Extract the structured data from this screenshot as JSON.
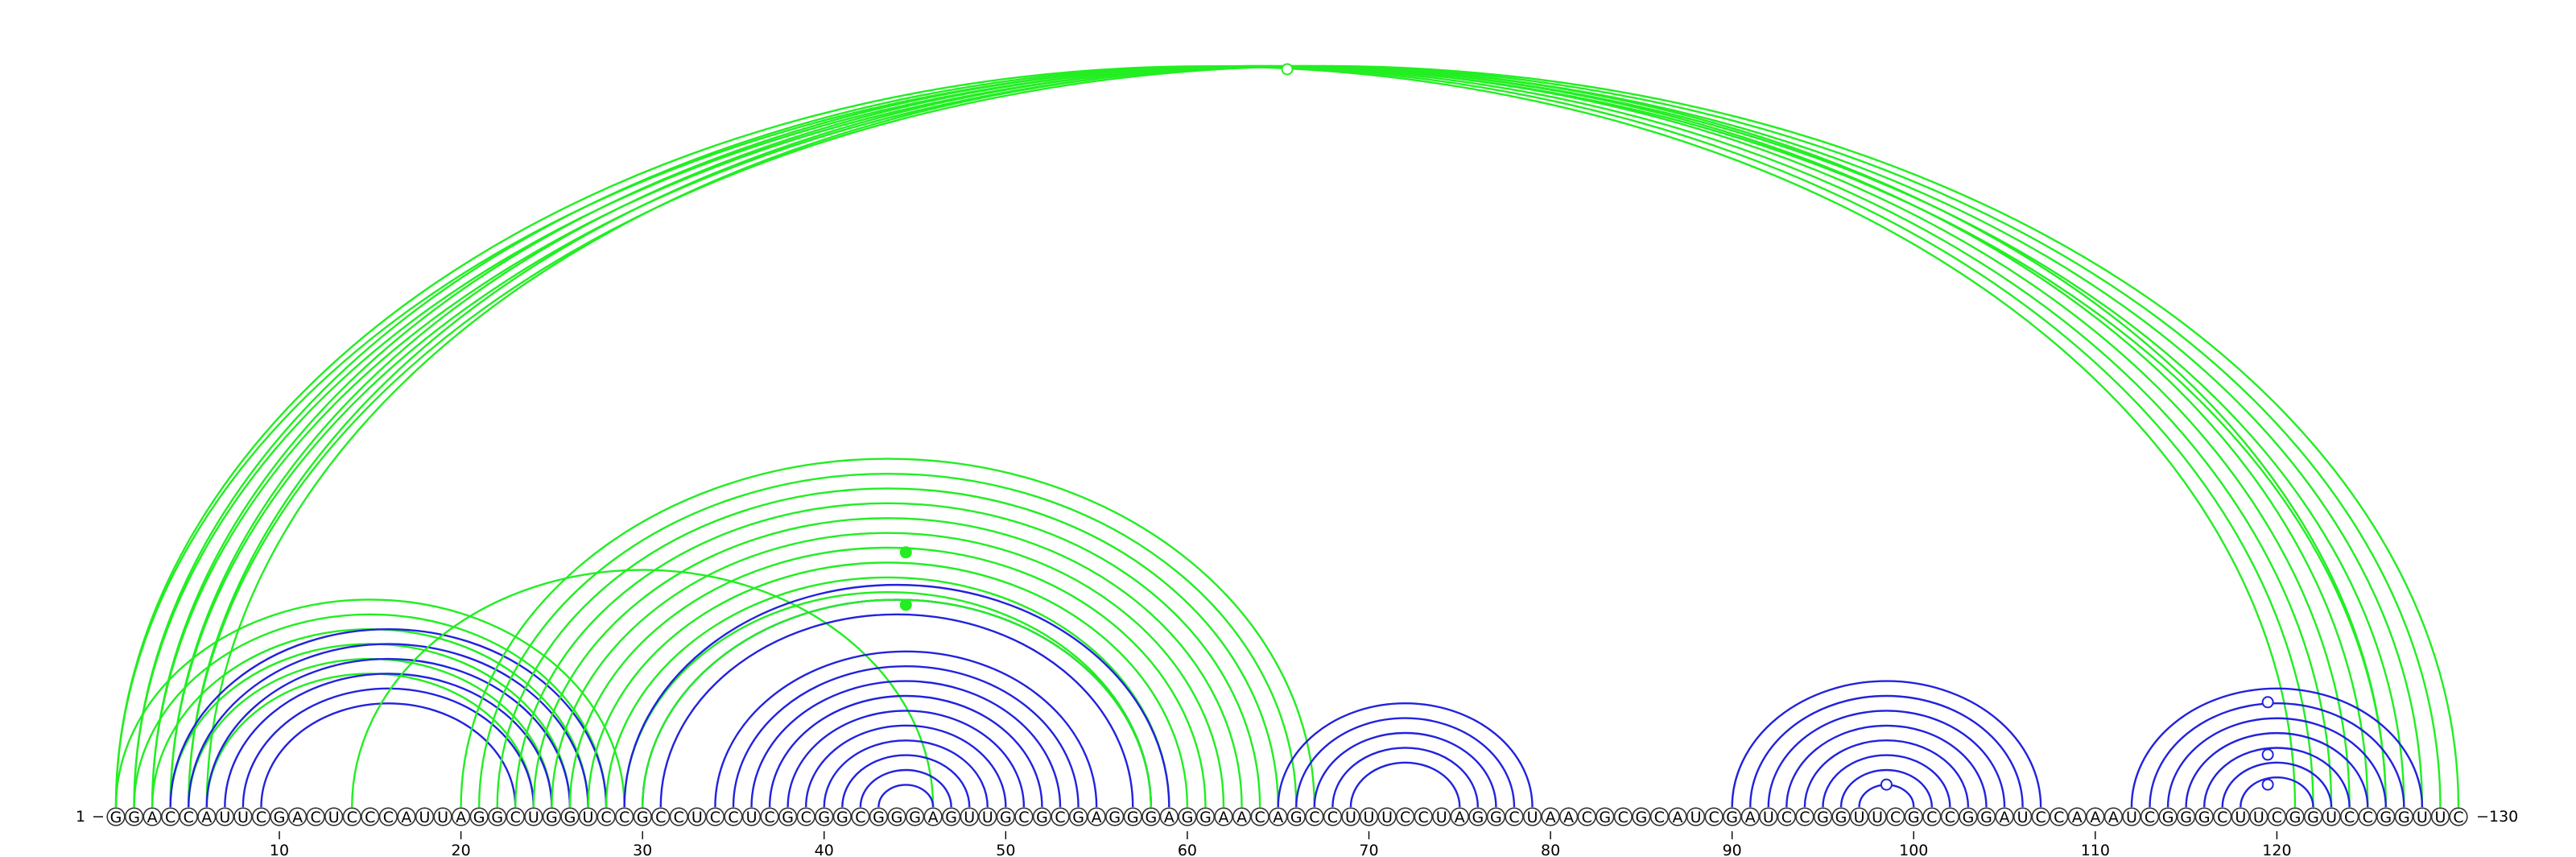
{
  "sequence": "GGACCAUUCGACUCCCAUUAGGCUGGUCCGCCUCCUCGCGGCGGGAGUUGCGCGAGGGAGGAACAGCCUUUCCUAGGCUAACGCGCAUCGAUCCGGUUCGCCGGAUCCAAAUCGGGCUUCGGUCCGGUUC",
  "start_label": "1",
  "end_label": "130",
  "ticks": [
    10,
    20,
    30,
    40,
    50,
    60,
    70,
    80,
    90,
    100,
    110,
    120
  ],
  "colors": {
    "green": "#22ee22",
    "blue": "#2222dd",
    "text": "#000000"
  },
  "arcs": [
    {
      "color": "green",
      "pairs": [
        [
          1,
          121
        ],
        [
          2,
          122
        ],
        [
          3,
          123
        ],
        [
          4,
          124
        ],
        [
          5,
          125
        ],
        [
          6,
          126
        ],
        [
          1,
          126
        ],
        [
          2,
          127
        ],
        [
          3,
          128
        ],
        [
          4,
          129
        ],
        [
          5,
          130
        ]
      ]
    },
    {
      "color": "green",
      "pairs": [
        [
          1,
          29
        ],
        [
          2,
          28
        ],
        [
          3,
          27
        ],
        [
          4,
          26
        ],
        [
          5,
          25
        ],
        [
          6,
          24
        ]
      ]
    },
    {
      "color": "blue",
      "pairs": [
        [
          4,
          28
        ],
        [
          5,
          27
        ],
        [
          6,
          26
        ],
        [
          7,
          25
        ],
        [
          8,
          24
        ],
        [
          9,
          23
        ]
      ]
    },
    {
      "color": "green",
      "pairs": [
        [
          14,
          46
        ]
      ]
    },
    {
      "color": "green",
      "pairs": [
        [
          20,
          67
        ],
        [
          21,
          66
        ],
        [
          22,
          65
        ],
        [
          23,
          64
        ],
        [
          24,
          63
        ],
        [
          25,
          62
        ],
        [
          26,
          61
        ],
        [
          27,
          60
        ],
        [
          28,
          59
        ],
        [
          29,
          58
        ]
      ]
    },
    {
      "color": "blue",
      "pairs": [
        [
          29,
          59
        ],
        [
          30,
          58
        ],
        [
          31,
          57
        ]
      ]
    },
    {
      "color": "green",
      "pairs": [
        [
          30,
          58
        ]
      ]
    },
    {
      "color": "blue",
      "pairs": [
        [
          34,
          55
        ],
        [
          35,
          54
        ],
        [
          36,
          53
        ],
        [
          37,
          52
        ],
        [
          38,
          51
        ],
        [
          39,
          50
        ],
        [
          40,
          49
        ],
        [
          41,
          48
        ],
        [
          42,
          47
        ],
        [
          43,
          46
        ]
      ]
    },
    {
      "color": "blue",
      "pairs": [
        [
          65,
          79
        ],
        [
          66,
          78
        ],
        [
          67,
          77
        ],
        [
          68,
          76
        ],
        [
          69,
          75
        ]
      ]
    },
    {
      "color": "blue",
      "pairs": [
        [
          90,
          107
        ],
        [
          91,
          106
        ],
        [
          92,
          105
        ],
        [
          93,
          104
        ],
        [
          94,
          103
        ],
        [
          95,
          102
        ],
        [
          96,
          101
        ],
        [
          97,
          100
        ]
      ]
    },
    {
      "color": "blue",
      "pairs": [
        [
          112,
          128
        ],
        [
          113,
          127
        ],
        [
          114,
          126
        ],
        [
          115,
          125
        ],
        [
          116,
          124
        ],
        [
          117,
          123
        ],
        [
          118,
          122
        ]
      ]
    }
  ],
  "markers": [
    {
      "type": "open",
      "color": "green",
      "position": 65.5,
      "height_fraction": 0.985
    },
    {
      "type": "filled",
      "color": "green",
      "position": 44.5,
      "height_fraction": 0.34
    },
    {
      "type": "filled",
      "color": "green",
      "position": 44.5,
      "height_fraction": 0.27
    },
    {
      "type": "open",
      "color": "blue",
      "position": 98.5,
      "height_fraction": 0.03
    },
    {
      "type": "open",
      "color": "blue",
      "position": 119.5,
      "height_fraction": 0.14
    },
    {
      "type": "open",
      "color": "blue",
      "position": 119.5,
      "height_fraction": 0.07
    },
    {
      "type": "open",
      "color": "blue",
      "position": 119.5,
      "height_fraction": 0.03
    }
  ]
}
